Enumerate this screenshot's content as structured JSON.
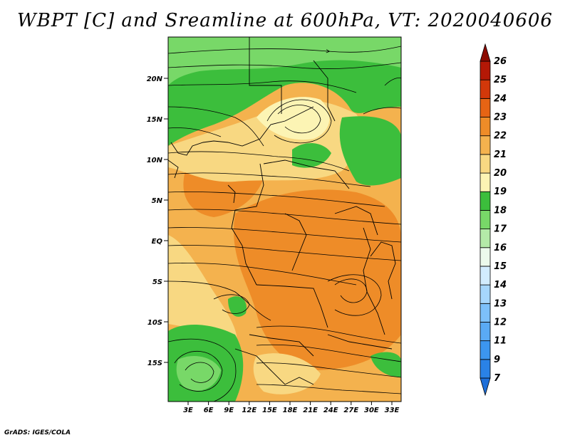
{
  "title": "WBPT [C] and Sreamline at 600hPa, VT: 2020040606",
  "credit": "GrADS: IGES/COLA",
  "map": {
    "lat_ticks": [
      "20N",
      "15N",
      "10N",
      "5N",
      "EQ",
      "5S",
      "10S",
      "15S"
    ],
    "lon_ticks": [
      "3E",
      "6E",
      "9E",
      "12E",
      "15E",
      "18E",
      "21E",
      "24E",
      "27E",
      "30E",
      "33E"
    ]
  },
  "colorbar": {
    "labels": [
      "7",
      "9",
      "11",
      "12",
      "13",
      "14",
      "15",
      "16",
      "17",
      "18",
      "19",
      "20",
      "21",
      "22",
      "23",
      "24",
      "25",
      "26"
    ],
    "colors": [
      "#1e6fd9",
      "#2a82e6",
      "#3c96ef",
      "#5aaaf5",
      "#7dc0fa",
      "#a6d6fc",
      "#d2ecfe",
      "#ecfaec",
      "#b4eaa8",
      "#78d868",
      "#3cbe3c",
      "#fcf4b4",
      "#f8d882",
      "#f4b24e",
      "#ee8c28",
      "#e66414",
      "#d2380a",
      "#b41806",
      "#8c0a00"
    ]
  }
}
